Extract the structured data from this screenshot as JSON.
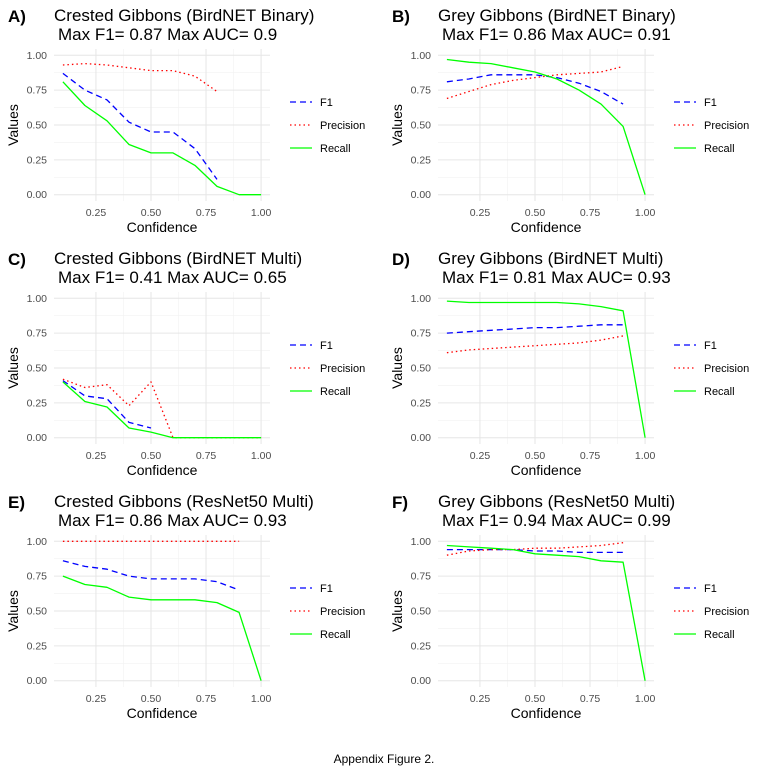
{
  "caption": "Appendix Figure 2.",
  "chart_data": [
    {
      "type": "line",
      "panel_label": "A)",
      "title": "Crested Gibbons (BirdNET Binary)",
      "subtitle": "Max F1= 0.87 Max AUC= 0.9",
      "xlabel": "Confidence",
      "ylabel": "Values",
      "xlim": [
        0.1,
        1.0
      ],
      "ylim": [
        0,
        1
      ],
      "xticks": [
        "0.25",
        "0.50",
        "0.75",
        "1.00"
      ],
      "yticks": [
        "0.00",
        "0.25",
        "0.50",
        "0.75",
        "1.00"
      ],
      "grid": true,
      "legend_position": "right",
      "x": [
        0.1,
        0.2,
        0.3,
        0.4,
        0.5,
        0.6,
        0.7,
        0.8,
        0.9,
        1.0
      ],
      "series": [
        {
          "name": "F1",
          "style": "dashed",
          "color": "#0000ff",
          "values": [
            0.87,
            0.75,
            0.68,
            0.52,
            0.45,
            0.45,
            0.33,
            0.11,
            null,
            null
          ]
        },
        {
          "name": "Precision",
          "style": "dotted",
          "color": "#ff0000",
          "values": [
            0.93,
            0.94,
            0.93,
            0.91,
            0.89,
            0.89,
            0.85,
            0.74,
            null,
            null
          ]
        },
        {
          "name": "Recall",
          "style": "solid",
          "color": "#00ff00",
          "values": [
            0.81,
            0.64,
            0.53,
            0.36,
            0.3,
            0.3,
            0.21,
            0.06,
            0.0,
            0.0
          ]
        }
      ]
    },
    {
      "type": "line",
      "panel_label": "B)",
      "title": "Grey Gibbons (BirdNET Binary)",
      "subtitle": "Max F1= 0.86 Max AUC= 0.91",
      "xlabel": "Confidence",
      "ylabel": "Values",
      "xlim": [
        0.1,
        1.0
      ],
      "ylim": [
        0,
        1
      ],
      "xticks": [
        "0.25",
        "0.50",
        "0.75",
        "1.00"
      ],
      "yticks": [
        "0.00",
        "0.25",
        "0.50",
        "0.75",
        "1.00"
      ],
      "grid": true,
      "legend_position": "right",
      "x": [
        0.1,
        0.2,
        0.3,
        0.4,
        0.5,
        0.6,
        0.7,
        0.8,
        0.9,
        1.0
      ],
      "series": [
        {
          "name": "F1",
          "style": "dashed",
          "color": "#0000ff",
          "values": [
            0.81,
            0.83,
            0.86,
            0.86,
            0.86,
            0.84,
            0.8,
            0.74,
            0.65,
            null
          ]
        },
        {
          "name": "Precision",
          "style": "dotted",
          "color": "#ff0000",
          "values": [
            0.69,
            0.74,
            0.79,
            0.82,
            0.84,
            0.86,
            0.87,
            0.88,
            0.92,
            null
          ]
        },
        {
          "name": "Recall",
          "style": "solid",
          "color": "#00ff00",
          "values": [
            0.97,
            0.95,
            0.94,
            0.91,
            0.88,
            0.83,
            0.75,
            0.65,
            0.49,
            0.0
          ]
        }
      ]
    },
    {
      "type": "line",
      "panel_label": "C)",
      "title": "Crested Gibbons (BirdNET Multi)",
      "subtitle": "Max F1= 0.41 Max AUC= 0.65",
      "xlabel": "Confidence",
      "ylabel": "Values",
      "xlim": [
        0.1,
        1.0
      ],
      "ylim": [
        0,
        1
      ],
      "xticks": [
        "0.25",
        "0.50",
        "0.75",
        "1.00"
      ],
      "yticks": [
        "0.00",
        "0.25",
        "0.50",
        "0.75",
        "1.00"
      ],
      "grid": true,
      "legend_position": "right",
      "x": [
        0.1,
        0.2,
        0.3,
        0.4,
        0.5,
        0.6,
        0.7,
        0.8,
        0.9,
        1.0
      ],
      "series": [
        {
          "name": "F1",
          "style": "dashed",
          "color": "#0000ff",
          "values": [
            0.41,
            0.3,
            0.28,
            0.11,
            0.07,
            null,
            null,
            null,
            null,
            null
          ]
        },
        {
          "name": "Precision",
          "style": "dotted",
          "color": "#ff0000",
          "values": [
            0.42,
            0.36,
            0.38,
            0.23,
            0.4,
            0.0,
            0.0,
            0.0,
            0.0,
            0.0
          ]
        },
        {
          "name": "Recall",
          "style": "solid",
          "color": "#00ff00",
          "values": [
            0.4,
            0.26,
            0.22,
            0.07,
            0.04,
            0.0,
            0.0,
            0.0,
            0.0,
            0.0
          ]
        }
      ]
    },
    {
      "type": "line",
      "panel_label": "D)",
      "title": "Grey Gibbons (BirdNET Multi)",
      "subtitle": "Max F1= 0.81 Max AUC= 0.93",
      "xlabel": "Confidence",
      "ylabel": "Values",
      "xlim": [
        0.1,
        1.0
      ],
      "ylim": [
        0,
        1
      ],
      "xticks": [
        "0.25",
        "0.50",
        "0.75",
        "1.00"
      ],
      "yticks": [
        "0.00",
        "0.25",
        "0.50",
        "0.75",
        "1.00"
      ],
      "grid": true,
      "legend_position": "right",
      "x": [
        0.1,
        0.2,
        0.3,
        0.4,
        0.5,
        0.6,
        0.7,
        0.8,
        0.9,
        1.0
      ],
      "series": [
        {
          "name": "F1",
          "style": "dashed",
          "color": "#0000ff",
          "values": [
            0.75,
            0.76,
            0.77,
            0.78,
            0.79,
            0.79,
            0.8,
            0.81,
            0.81,
            null
          ]
        },
        {
          "name": "Precision",
          "style": "dotted",
          "color": "#ff0000",
          "values": [
            0.61,
            0.63,
            0.64,
            0.65,
            0.66,
            0.67,
            0.68,
            0.7,
            0.73,
            null
          ]
        },
        {
          "name": "Recall",
          "style": "solid",
          "color": "#00ff00",
          "values": [
            0.98,
            0.97,
            0.97,
            0.97,
            0.97,
            0.97,
            0.96,
            0.94,
            0.91,
            0.0
          ]
        }
      ]
    },
    {
      "type": "line",
      "panel_label": "E)",
      "title": "Crested Gibbons (ResNet50 Multi)",
      "subtitle": "Max F1= 0.86 Max AUC= 0.93",
      "xlabel": "Confidence",
      "ylabel": "Values",
      "xlim": [
        0.1,
        1.0
      ],
      "ylim": [
        0,
        1
      ],
      "xticks": [
        "0.25",
        "0.50",
        "0.75",
        "1.00"
      ],
      "yticks": [
        "0.00",
        "0.25",
        "0.50",
        "0.75",
        "1.00"
      ],
      "grid": true,
      "legend_position": "right",
      "x": [
        0.1,
        0.2,
        0.3,
        0.4,
        0.5,
        0.6,
        0.7,
        0.8,
        0.9,
        1.0
      ],
      "series": [
        {
          "name": "F1",
          "style": "dashed",
          "color": "#0000ff",
          "values": [
            0.86,
            0.82,
            0.8,
            0.75,
            0.73,
            0.73,
            0.73,
            0.71,
            0.65,
            null
          ]
        },
        {
          "name": "Precision",
          "style": "dotted",
          "color": "#ff0000",
          "values": [
            1.0,
            1.0,
            1.0,
            1.0,
            1.0,
            1.0,
            1.0,
            1.0,
            1.0,
            null
          ]
        },
        {
          "name": "Recall",
          "style": "solid",
          "color": "#00ff00",
          "values": [
            0.75,
            0.69,
            0.67,
            0.6,
            0.58,
            0.58,
            0.58,
            0.56,
            0.49,
            0.0
          ]
        }
      ]
    },
    {
      "type": "line",
      "panel_label": "F)",
      "title": "Grey Gibbons (ResNet50 Multi)",
      "subtitle": "Max F1= 0.94 Max AUC= 0.99",
      "xlabel": "Confidence",
      "ylabel": "Values",
      "xlim": [
        0.1,
        1.0
      ],
      "ylim": [
        0,
        1
      ],
      "xticks": [
        "0.25",
        "0.50",
        "0.75",
        "1.00"
      ],
      "yticks": [
        "0.00",
        "0.25",
        "0.50",
        "0.75",
        "1.00"
      ],
      "grid": true,
      "legend_position": "right",
      "x": [
        0.1,
        0.2,
        0.3,
        0.4,
        0.5,
        0.6,
        0.7,
        0.8,
        0.9,
        1.0
      ],
      "series": [
        {
          "name": "F1",
          "style": "dashed",
          "color": "#0000ff",
          "values": [
            0.94,
            0.94,
            0.94,
            0.94,
            0.93,
            0.93,
            0.92,
            0.92,
            0.92,
            null
          ]
        },
        {
          "name": "Precision",
          "style": "dotted",
          "color": "#ff0000",
          "values": [
            0.9,
            0.93,
            0.94,
            0.94,
            0.95,
            0.95,
            0.96,
            0.97,
            0.99,
            null
          ]
        },
        {
          "name": "Recall",
          "style": "solid",
          "color": "#00ff00",
          "values": [
            0.97,
            0.96,
            0.95,
            0.94,
            0.91,
            0.9,
            0.89,
            0.86,
            0.85,
            0.0
          ]
        }
      ]
    }
  ]
}
